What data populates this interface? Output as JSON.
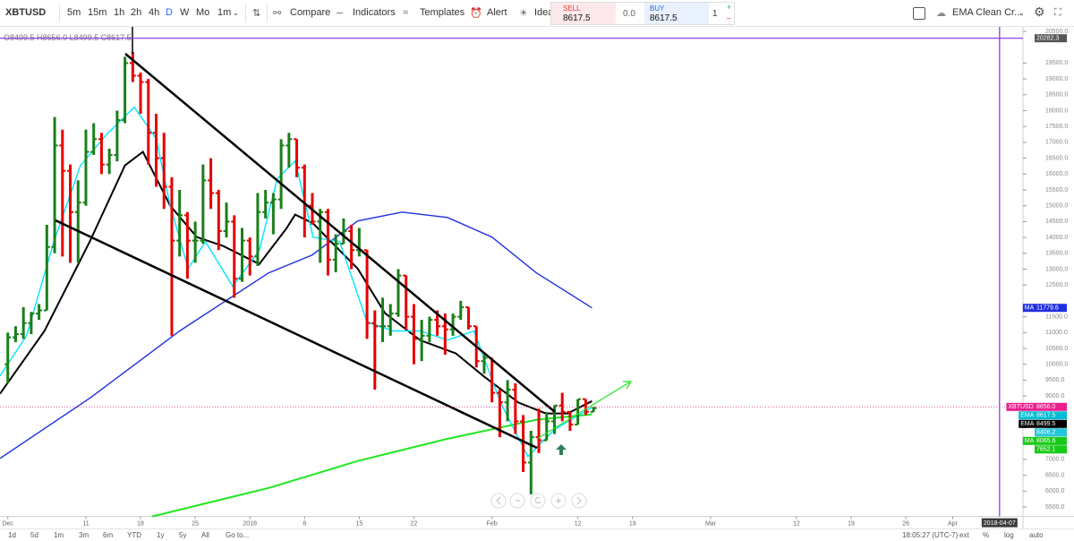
{
  "toolbar": {
    "symbol": "XBTUSD",
    "intervals": [
      "5m",
      "15m",
      "1h",
      "2h",
      "4h",
      "D",
      "W",
      "Mo",
      "1m"
    ],
    "buttons": [
      "Compare",
      "Indicators",
      "Templates",
      "Alert",
      "Idea"
    ],
    "trade": {
      "sell_label": "SELL",
      "sell_price": "8617.5",
      "spread": "0.0",
      "buy_label": "BUY",
      "buy_price": "8617.5",
      "quantity": "1"
    },
    "template": "EMA Clean Cr..."
  },
  "chart_data": {
    "type": "ohlc",
    "ohlc_legend": [
      "O8499.5",
      "H8656.0",
      "L8499.5",
      "C8617.5"
    ],
    "up_color": "#1a7f1a",
    "down_color": "#e60000",
    "bars": [
      [
        10000,
        11000,
        9400,
        10850
      ],
      [
        10850,
        11200,
        10700,
        10950
      ],
      [
        10950,
        11800,
        10800,
        11300
      ],
      [
        11300,
        11650,
        10950,
        11600
      ],
      [
        11600,
        11900,
        11400,
        11700
      ],
      [
        11700,
        14400,
        11700,
        13700
      ],
      [
        13700,
        17800,
        13500,
        16900
      ],
      [
        16900,
        17400,
        13400,
        16100
      ],
      [
        16100,
        16300,
        13200,
        14800
      ],
      [
        14800,
        15800,
        13200,
        15100
      ],
      [
        15100,
        17400,
        15000,
        16700
      ],
      [
        16700,
        17600,
        16600,
        17100
      ],
      [
        17100,
        17300,
        16000,
        16300
      ],
      [
        16300,
        16800,
        16000,
        16600
      ],
      [
        16600,
        18000,
        16400,
        17700
      ],
      [
        17700,
        19700,
        17600,
        19500
      ],
      [
        19500,
        19850,
        18900,
        19100
      ],
      [
        19100,
        19200,
        17900,
        18900
      ],
      [
        18900,
        19000,
        16300,
        17300
      ],
      [
        17300,
        17900,
        15600,
        16500
      ],
      [
        16500,
        17300,
        14900,
        15600
      ],
      [
        15600,
        15900,
        10900,
        13900
      ],
      [
        13900,
        15500,
        13400,
        14700
      ],
      [
        14700,
        14800,
        12700,
        13900
      ],
      [
        13900,
        14500,
        13200,
        13900
      ],
      [
        13900,
        16300,
        13800,
        15800
      ],
      [
        15800,
        16500,
        14900,
        15400
      ],
      [
        15400,
        15500,
        13600,
        14200
      ],
      [
        14200,
        15100,
        14000,
        14500
      ],
      [
        14500,
        14700,
        12100,
        12700
      ],
      [
        12700,
        14300,
        12600,
        13900
      ],
      [
        13900,
        14000,
        12800,
        13400
      ],
      [
        13400,
        15400,
        13100,
        14800
      ],
      [
        14800,
        15500,
        14600,
        15100
      ],
      [
        15100,
        15400,
        14100,
        15200
      ],
      [
        15200,
        17100,
        14900,
        16900
      ],
      [
        16900,
        17300,
        16200,
        17100
      ],
      [
        17100,
        17100,
        15900,
        16200
      ],
      [
        16200,
        16300,
        14000,
        15000
      ],
      [
        15000,
        15400,
        14400,
        14500
      ],
      [
        14500,
        14900,
        13200,
        14800
      ],
      [
        14800,
        14900,
        12800,
        13300
      ],
      [
        13300,
        14100,
        12900,
        13800
      ],
      [
        13800,
        14600,
        13800,
        14200
      ],
      [
        14200,
        14400,
        13000,
        13600
      ],
      [
        13600,
        14300,
        13400,
        13600
      ],
      [
        13600,
        13600,
        10800,
        11300
      ],
      [
        11300,
        11700,
        9200,
        11200
      ],
      [
        11200,
        12100,
        10700,
        11200
      ],
      [
        11200,
        11900,
        10900,
        11600
      ],
      [
        11600,
        13000,
        11500,
        12800
      ],
      [
        12800,
        12800,
        11100,
        11500
      ],
      [
        11500,
        11900,
        10000,
        10800
      ],
      [
        10800,
        11400,
        10100,
        10900
      ],
      [
        10900,
        11500,
        10700,
        11400
      ],
      [
        11400,
        11700,
        10900,
        11200
      ],
      [
        11200,
        11600,
        10300,
        11100
      ],
      [
        11100,
        11600,
        10900,
        11500
      ],
      [
        11500,
        12000,
        11400,
        11800
      ],
      [
        11800,
        11800,
        11100,
        11200
      ],
      [
        11200,
        11200,
        9900,
        10100
      ],
      [
        10100,
        10300,
        9700,
        10200
      ],
      [
        10200,
        10200,
        8800,
        9100
      ],
      [
        9100,
        9200,
        7700,
        8800
      ],
      [
        8800,
        9500,
        8200,
        9200
      ],
      [
        9200,
        9400,
        7800,
        8200
      ],
      [
        8200,
        8400,
        6600,
        6900
      ],
      [
        6900,
        7900,
        5900,
        7700
      ],
      [
        7700,
        8600,
        7200,
        7600
      ],
      [
        7600,
        8500,
        7600,
        8200
      ],
      [
        8200,
        8700,
        7800,
        8700
      ],
      [
        8700,
        9100,
        8200,
        8500
      ],
      [
        8500,
        8500,
        7900,
        8100
      ],
      [
        8100,
        8900,
        8100,
        8900
      ],
      [
        8900,
        8900,
        8400,
        8500
      ],
      [
        8499.5,
        8656.0,
        8499.5,
        8617.5
      ]
    ],
    "lines": [
      {
        "color": "#1f2fe0",
        "x": [
          -1,
          10.5,
          22,
          33.4,
          39,
          44.8,
          50.5,
          56.3,
          62,
          67.7,
          74.8
        ],
        "values": [
          7030,
          8930,
          11050,
          12880,
          13450,
          14520,
          14800,
          14630,
          14010,
          12880,
          11780
        ]
      },
      {
        "color": "#22e622",
        "x": [
          18.5,
          33.4,
          44.8,
          56.3,
          67.7,
          74.8
        ],
        "values": [
          5200,
          6100,
          6950,
          7650,
          8250,
          8420
        ]
      },
      {
        "color": "#000000",
        "x": [
          -1,
          4.7,
          10.5,
          15,
          17.3,
          20.8,
          24.2,
          27.6,
          32.2,
          35.7,
          36.8,
          39.1,
          42.5,
          44.8,
          48.3,
          52.8,
          57.4,
          60.9,
          65.4,
          68.9,
          71.7,
          74.8
        ],
        "values": [
          9070,
          11050,
          13870,
          16270,
          16700,
          15000,
          14010,
          13730,
          13160,
          14290,
          14720,
          14440,
          13590,
          13020,
          11610,
          10760,
          10340,
          9630,
          8790,
          8450,
          8450,
          8840
        ]
      },
      {
        "color": "#00e5ff",
        "x": [
          -1,
          2.4,
          5.9,
          9.3,
          12.7,
          16.2,
          19,
          20.8,
          23.1,
          25.3,
          28.8,
          32.2,
          34.5,
          36.8,
          39.1,
          42.5,
          46,
          49.4,
          52.8,
          56.3,
          59.7,
          63.1,
          66.6,
          70,
          74.8
        ],
        "values": [
          9630,
          10900,
          13870,
          16270,
          17260,
          18110,
          17120,
          15000,
          13020,
          13870,
          12460,
          13590,
          15850,
          16410,
          14010,
          13870,
          11330,
          11050,
          11050,
          10760,
          11050,
          8790,
          7090,
          7940,
          8640
        ]
      }
    ],
    "xlim": [
      -1,
      130
    ],
    "ylim": [
      5200,
      20500
    ],
    "xticks": [
      {
        "value": 0,
        "label": "Dec"
      },
      {
        "value": 10,
        "label": "11"
      },
      {
        "value": 17,
        "label": "18"
      },
      {
        "value": 24,
        "label": "25"
      },
      {
        "value": 31,
        "label": "2018"
      },
      {
        "value": 38,
        "label": "8"
      },
      {
        "value": 45,
        "label": "15"
      },
      {
        "value": 52,
        "label": "22"
      },
      {
        "value": 62,
        "label": "Feb"
      },
      {
        "value": 73,
        "label": "12"
      },
      {
        "value": 80,
        "label": "19"
      },
      {
        "value": 90,
        "label": "Mar"
      },
      {
        "value": 101,
        "label": "12"
      },
      {
        "value": 108,
        "label": "19"
      },
      {
        "value": 115,
        "label": "26"
      },
      {
        "value": 121,
        "label": "Apr"
      }
    ],
    "marker": {
      "value": 127,
      "label": "2018-04-07"
    },
    "yticks": [
      {
        "value": 5500,
        "label": "5500.0"
      },
      {
        "value": 6000,
        "label": "6000.0"
      },
      {
        "value": 6500,
        "label": "6500.0"
      },
      {
        "value": 7000,
        "label": "7000.0"
      },
      {
        "value": 7500,
        "label": "7500.0"
      },
      {
        "value": 8000,
        "label": "8000.0"
      },
      {
        "value": 9000,
        "label": "9000.0"
      },
      {
        "value": 9500,
        "label": "9500.0"
      },
      {
        "value": 10000,
        "label": "10000.0"
      },
      {
        "value": 10500,
        "label": "10500.0"
      },
      {
        "value": 11000,
        "label": "11000.0"
      },
      {
        "value": 11500,
        "label": "11500.0"
      },
      {
        "value": 12500,
        "label": "12500.0"
      },
      {
        "value": 13000,
        "label": "13000.0"
      },
      {
        "value": 13500,
        "label": "13500.0"
      },
      {
        "value": 14000,
        "label": "14000.0"
      },
      {
        "value": 14500,
        "label": "14500.0"
      },
      {
        "value": 15000,
        "label": "15000.0"
      },
      {
        "value": 15500,
        "label": "15500.0"
      },
      {
        "value": 16000,
        "label": "16000.0"
      },
      {
        "value": 16500,
        "label": "16500.0"
      },
      {
        "value": 17000,
        "label": "17000.0"
      },
      {
        "value": 17500,
        "label": "17500.0"
      },
      {
        "value": 18000,
        "label": "18000.0"
      },
      {
        "value": 18500,
        "label": "18500.0"
      },
      {
        "value": 19000,
        "label": "19000.0"
      },
      {
        "value": 19500,
        "label": "19500.0"
      },
      {
        "value": 20500,
        "label": "20500.0"
      }
    ],
    "price_labels": [
      {
        "value": 20282.3,
        "label": "20282.3",
        "color": "#555555"
      },
      {
        "name": "MA",
        "value": 11779.6,
        "label": "11779.6",
        "color": "#1f2fe0"
      },
      {
        "name": "XBTUSD",
        "value": 8656.0,
        "label": "8656.0",
        "color": "#e91e8c"
      },
      {
        "name": "EMA",
        "value": 8617.5,
        "label": "8617.5",
        "color": "#00bcd4"
      },
      {
        "name": "EMA",
        "value": 8499.5,
        "label": "8499.5",
        "color": "#000000"
      },
      {
        "value": 8406.2,
        "label": "8406.2",
        "color": "#26c6da"
      },
      {
        "name": "MA",
        "value": 8065.6,
        "label": "8065.6",
        "color": "#18c918"
      },
      {
        "value": 7652.1,
        "label": "7652.1",
        "color": "#18c918"
      }
    ]
  },
  "bottom_bar": {
    "ranges": [
      "1d",
      "5d",
      "1m",
      "3m",
      "6m",
      "YTD",
      "1y",
      "5y",
      "All"
    ],
    "goto": "Go to...",
    "clock": "18:05:27 (UTC-7)",
    "options": [
      "ext",
      "%",
      "log",
      "auto"
    ]
  }
}
